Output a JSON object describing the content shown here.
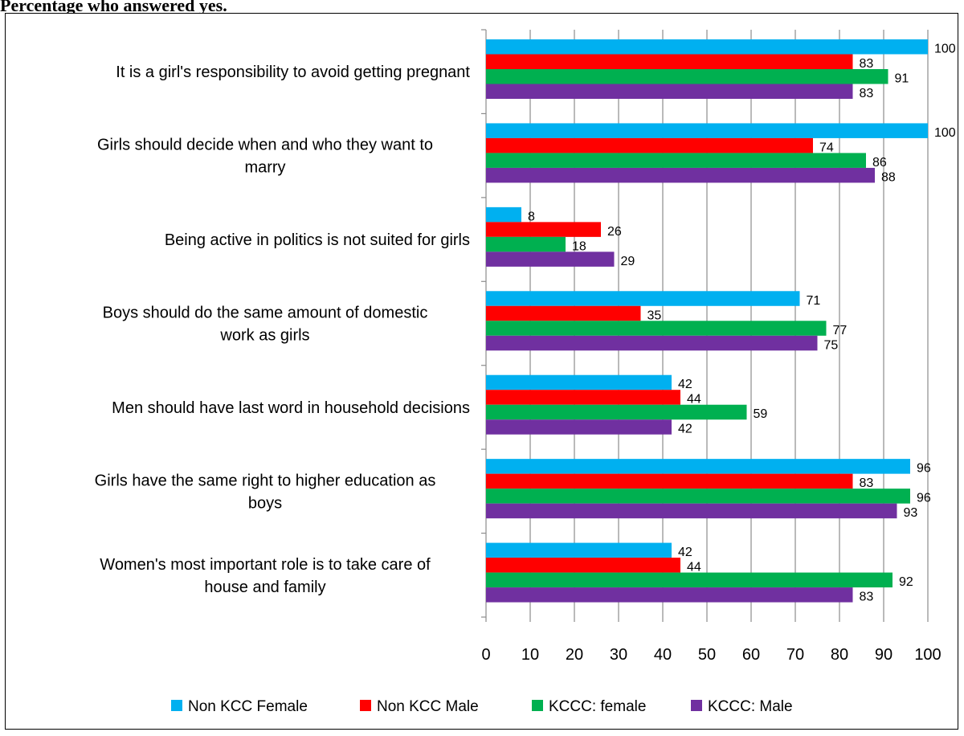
{
  "title": "Percentage who answered yes.",
  "chart_data": {
    "type": "bar",
    "orientation": "horizontal",
    "categories": [
      "It is a girl's responsibility to avoid getting pregnant",
      "Girls should decide when and who they want to marry",
      "Being active in politics is not suited for girls",
      "Boys should do the same amount of domestic work as girls",
      "Men should have last word in household decisions",
      "Girls have the same right to higher education as boys",
      "Women's most important role is to take care of house and family"
    ],
    "category_lines": [
      [
        "It is a girl's responsibility to avoid getting pregnant"
      ],
      [
        "Girls should decide when and who they want to",
        "marry"
      ],
      [
        "Being active in politics is not suited for girls"
      ],
      [
        "Boys should do the same amount of domestic",
        "work as girls"
      ],
      [
        "Men should have last word in household decisions"
      ],
      [
        "Girls have the same right to higher education as",
        "boys"
      ],
      [
        "Women's most important role is to take care of",
        "house and family"
      ]
    ],
    "series": [
      {
        "name": "Non KCC Female",
        "color": "#00b0f0",
        "values": [
          100,
          100,
          8,
          71,
          42,
          96,
          42
        ]
      },
      {
        "name": "Non KCC Male",
        "color": "#ff0000",
        "values": [
          83,
          74,
          26,
          35,
          44,
          83,
          44
        ]
      },
      {
        "name": "KCCC: female",
        "color": "#00b050",
        "values": [
          91,
          86,
          18,
          77,
          59,
          96,
          92
        ]
      },
      {
        "name": "KCCC: Male",
        "color": "#7030a0",
        "values": [
          83,
          88,
          29,
          75,
          42,
          93,
          83
        ]
      }
    ],
    "xlim": [
      0,
      100
    ],
    "xticks": [
      0,
      10,
      20,
      30,
      40,
      50,
      60,
      70,
      80,
      90,
      100
    ],
    "grid": "vertical",
    "legend": "bottom"
  }
}
